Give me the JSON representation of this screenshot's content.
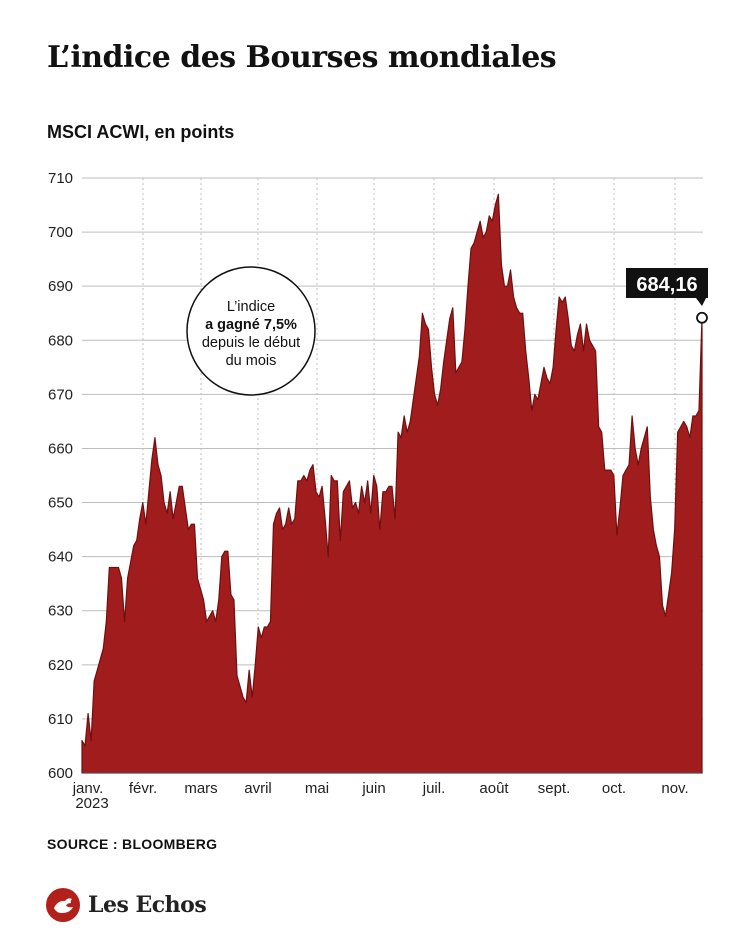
{
  "title": "L’indice des Bourses mondiales",
  "subtitle": "MSCI ACWI, en points",
  "source": "SOURCE : BLOOMBERG",
  "logo_text": "Les Echos",
  "colors": {
    "fill": "#a11c1c",
    "stroke": "#6f1010",
    "grid": "#bdbdbd"
  },
  "chart_data": {
    "type": "area",
    "title": "L’indice des Bourses mondiales",
    "subtitle": "MSCI ACWI, en points",
    "xlabel": "",
    "ylabel": "",
    "ylim": [
      600,
      710
    ],
    "yticks": [
      600,
      610,
      620,
      630,
      640,
      650,
      660,
      670,
      680,
      690,
      700,
      710
    ],
    "xticks": [
      "janv.",
      "févr.",
      "mars",
      "avril",
      "mai",
      "juin",
      "juil.",
      "août",
      "sept.",
      "oct.",
      "nov."
    ],
    "x_year_label": "2023",
    "grid": true,
    "last_value_label": "684,16",
    "annotation": [
      "L’indice",
      "a gagné 7,5%",
      "depuis le début",
      "du mois"
    ],
    "series": [
      {
        "values": [
          606,
          605,
          611,
          606,
          617,
          619,
          621,
          623,
          628,
          638,
          638,
          638,
          638,
          636,
          628,
          636,
          639,
          642,
          643,
          647,
          650,
          646,
          652,
          658,
          662,
          657,
          655,
          650,
          648,
          652,
          647,
          650,
          653,
          653,
          649,
          645,
          646,
          646,
          636,
          634,
          632,
          628,
          629,
          630,
          628,
          632,
          640,
          641,
          641,
          633,
          632,
          618,
          616,
          614,
          613,
          619,
          614,
          620,
          627,
          625,
          627,
          627,
          628,
          646,
          648,
          649,
          645,
          646,
          649,
          646,
          647,
          654,
          654,
          655,
          654,
          656,
          657,
          652,
          651,
          653,
          647,
          640,
          655,
          654,
          654,
          643,
          652,
          653,
          654,
          649,
          650,
          648,
          653,
          650,
          654,
          648,
          655,
          653,
          645,
          652,
          652,
          653,
          653,
          647,
          663,
          662,
          666,
          663,
          665,
          669,
          673,
          677,
          685,
          683,
          682,
          675,
          670,
          668,
          671,
          676,
          680,
          684,
          686,
          674,
          675,
          676,
          682,
          690,
          697,
          698,
          700,
          702,
          699,
          700,
          703,
          702,
          705,
          707,
          694,
          690,
          690,
          693,
          688,
          686,
          685,
          685,
          678,
          673,
          667,
          670,
          669,
          672,
          675,
          673,
          672,
          675,
          682,
          688,
          687,
          688,
          684,
          679,
          678,
          681,
          683,
          678,
          683,
          680,
          679,
          678,
          664,
          663,
          656,
          656,
          656,
          655,
          644,
          649,
          655,
          656,
          657,
          666,
          660,
          657,
          660,
          662,
          664,
          651,
          645,
          642,
          640,
          631,
          629,
          633,
          637,
          645,
          663,
          664,
          665,
          664,
          662,
          666,
          666,
          667,
          684.16
        ]
      }
    ]
  }
}
